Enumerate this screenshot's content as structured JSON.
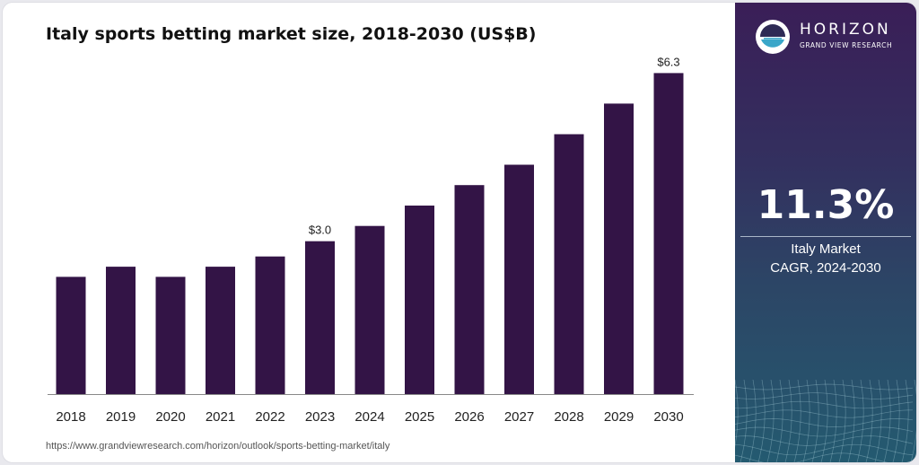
{
  "title": "Italy sports betting market size, 2018-2030 (US$B)",
  "source": "https://www.grandviewresearch.com/horizon/outlook/sports-betting-market/italy",
  "brand": {
    "name": "HORIZON",
    "subtitle": "GRAND VIEW RESEARCH",
    "logo_icon": "sun-over-water-icon"
  },
  "cagr": {
    "value": "11.3%",
    "line1": "Italy Market",
    "line2": "CAGR, 2024-2030"
  },
  "colors": {
    "bar": "#331446",
    "axis": "#888888",
    "logo_circle": "#ffffff",
    "logo_water": "#3aa6c9"
  },
  "chart_data": {
    "type": "bar",
    "categories": [
      "2018",
      "2019",
      "2020",
      "2021",
      "2022",
      "2023",
      "2024",
      "2025",
      "2026",
      "2027",
      "2028",
      "2029",
      "2030"
    ],
    "values": [
      2.3,
      2.5,
      2.3,
      2.5,
      2.7,
      3.0,
      3.3,
      3.7,
      4.1,
      4.5,
      5.1,
      5.7,
      6.3
    ],
    "data_labels": [
      {
        "index": 5,
        "text": "$3.0"
      },
      {
        "index": 12,
        "text": "$6.3"
      }
    ],
    "ylim": [
      0,
      6.5
    ],
    "grid": false,
    "xlabel": "",
    "ylabel": ""
  }
}
